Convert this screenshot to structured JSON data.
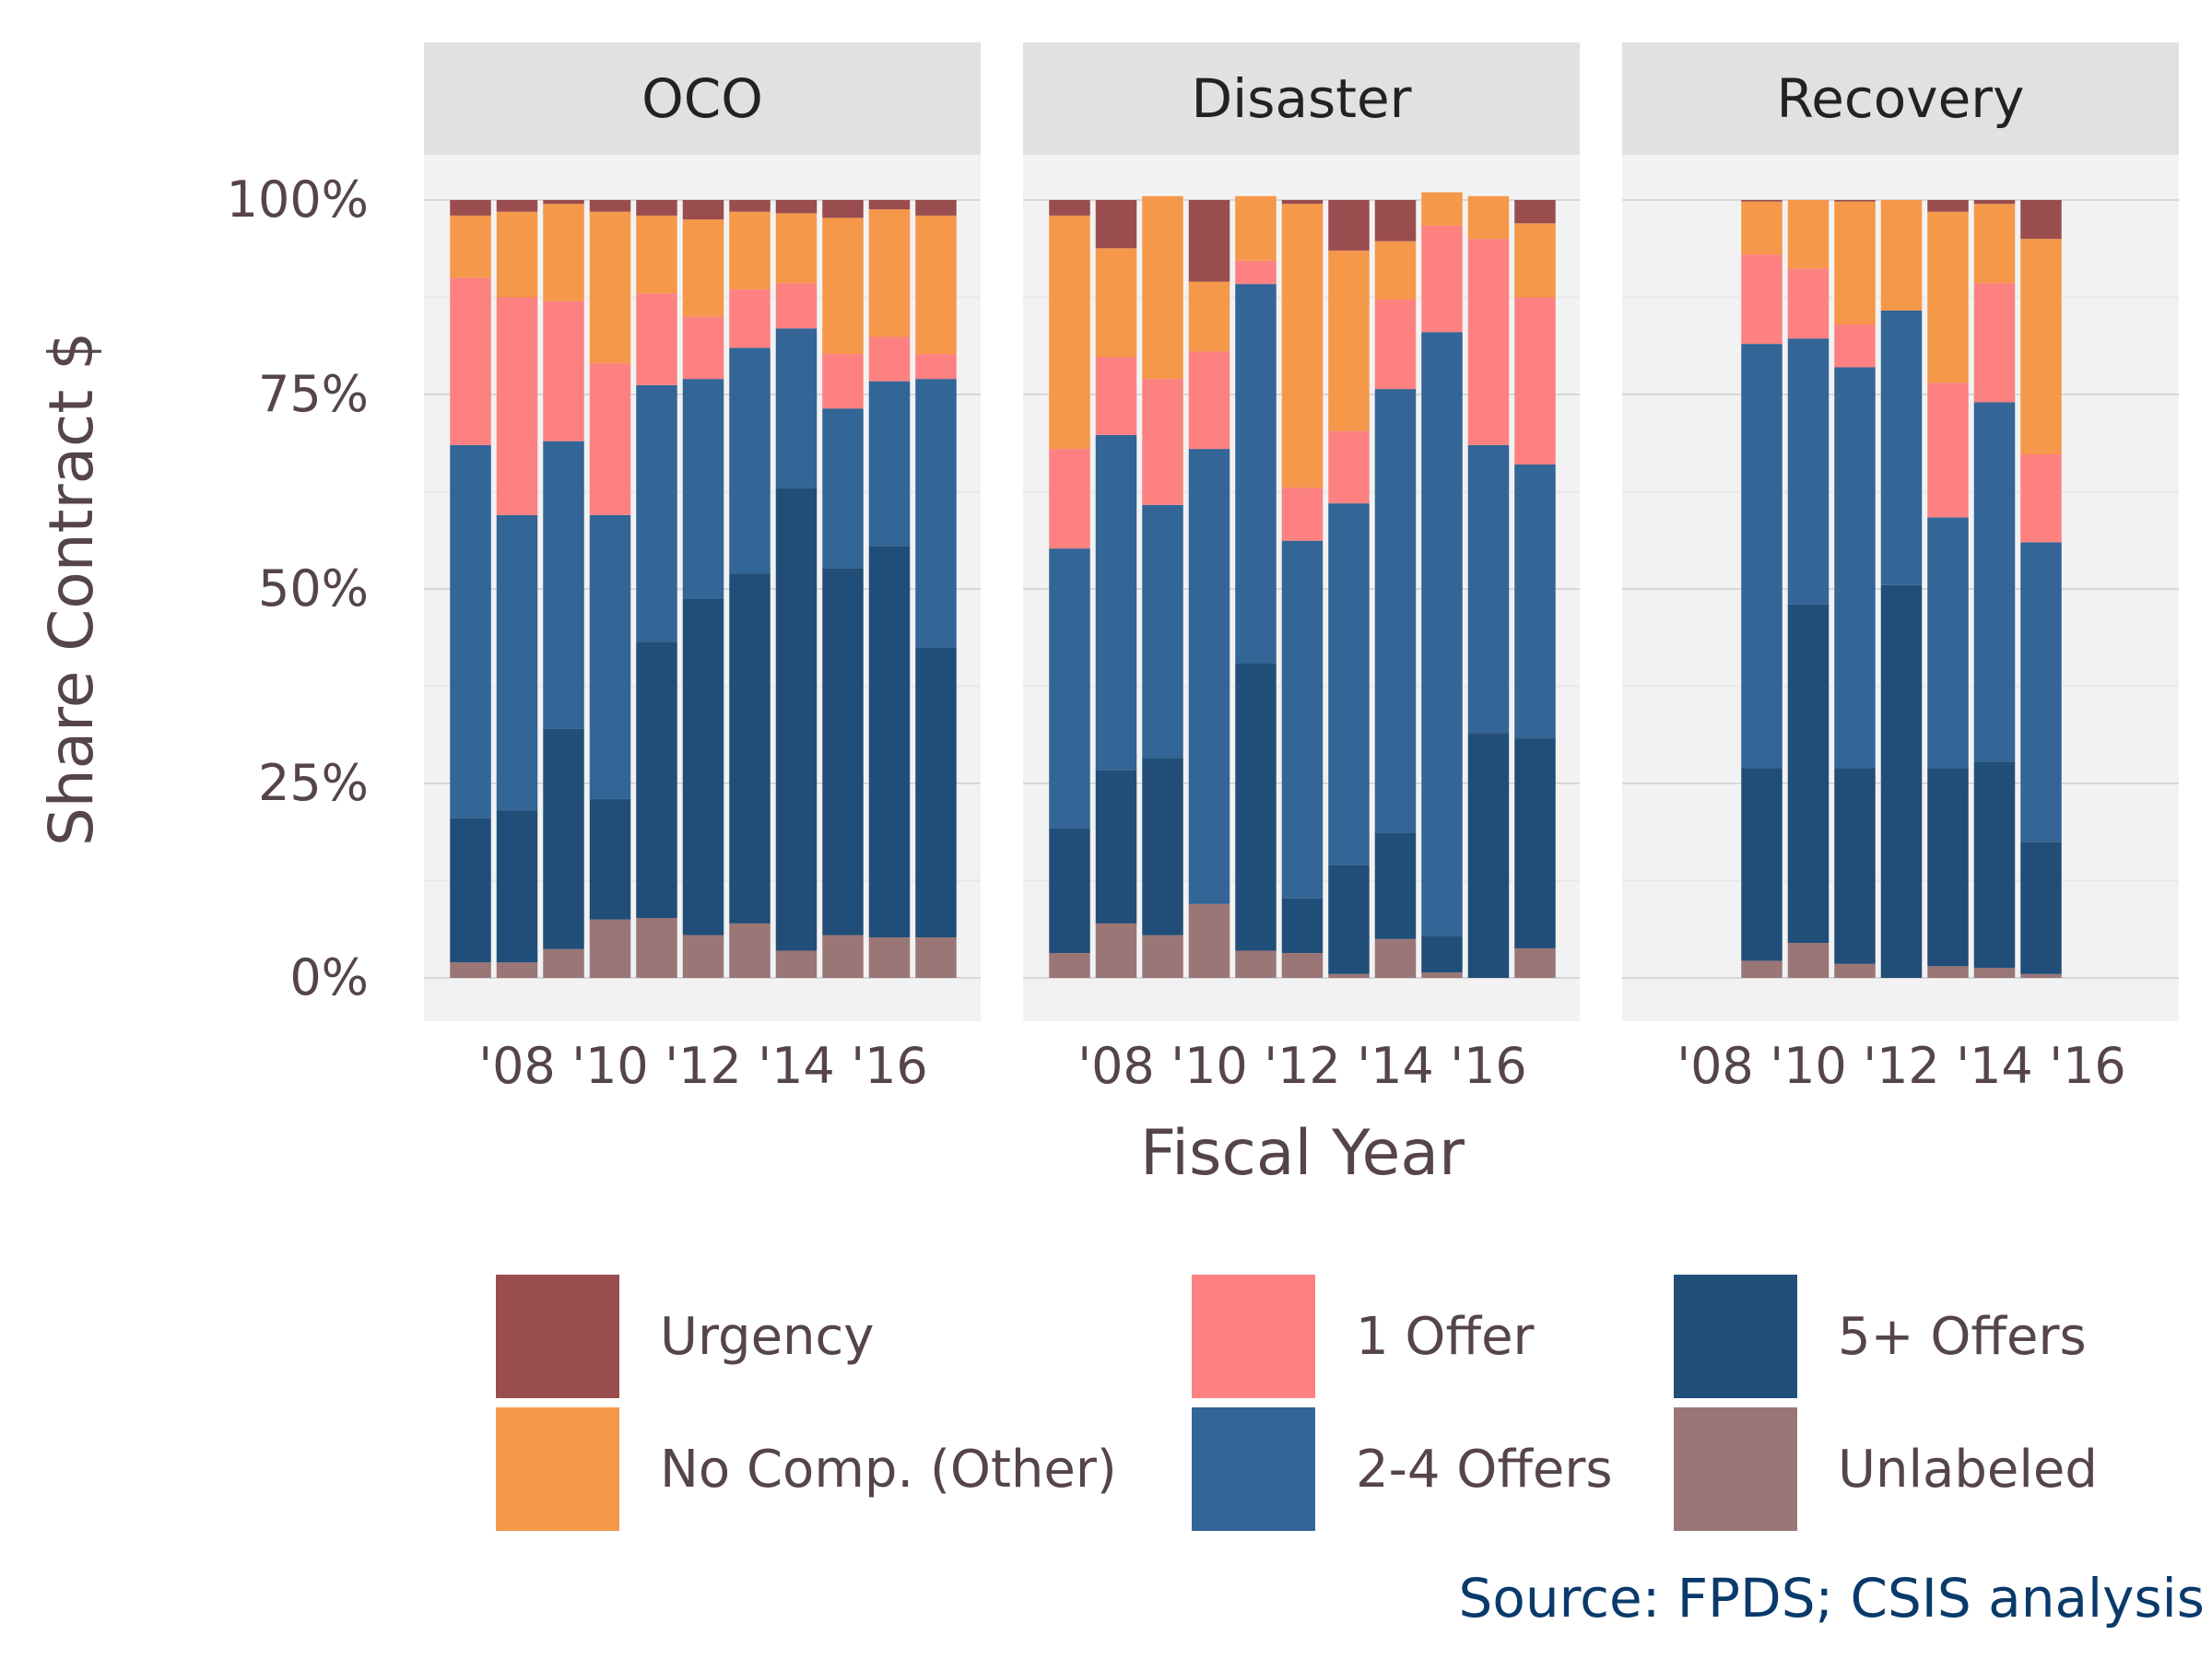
{
  "chart_data": {
    "type": "bar",
    "stacked": true,
    "ylabel": "Share Contract $",
    "xlabel": "Fiscal Year",
    "ylim": [
      0,
      1
    ],
    "y_ticks": [
      "0%",
      "25%",
      "50%",
      "75%",
      "100%"
    ],
    "x_ticks": [
      "'08",
      "'10",
      "'12",
      "'14",
      "'16"
    ],
    "categories": [
      2007,
      2008,
      2009,
      2010,
      2011,
      2012,
      2013,
      2014,
      2015,
      2016,
      2017
    ],
    "stack_order": [
      "Unlabeled",
      "5+ Offers",
      "2-4 Offers",
      "1 Offer",
      "No Comp. (Other)",
      "Urgency"
    ],
    "series_colors": {
      "Urgency": "#9a4d4e",
      "No Comp. (Other)": "#f5984a",
      "1 Offer": "#fd8180",
      "2-4 Offers": "#336596",
      "5+ Offers": "#214e78",
      "Unlabeled": "#9a7677"
    },
    "panels": [
      {
        "title": "OCO",
        "bars": [
          {
            "year": 2007,
            "Unlabeled": 0.02,
            "5+ Offers": 0.185,
            "2-4 Offers": 0.48,
            "1 Offer": 0.215,
            "No Comp. (Other)": 0.08,
            "Urgency": 0.02
          },
          {
            "year": 2008,
            "Unlabeled": 0.02,
            "5+ Offers": 0.195,
            "2-4 Offers": 0.38,
            "1 Offer": 0.28,
            "No Comp. (Other)": 0.11,
            "Urgency": 0.015
          },
          {
            "year": 2009,
            "Unlabeled": 0.037,
            "5+ Offers": 0.283,
            "2-4 Offers": 0.37,
            "1 Offer": 0.18,
            "No Comp. (Other)": 0.125,
            "Urgency": 0.005
          },
          {
            "year": 2010,
            "Unlabeled": 0.075,
            "5+ Offers": 0.155,
            "2-4 Offers": 0.365,
            "1 Offer": 0.195,
            "No Comp. (Other)": 0.195,
            "Urgency": 0.015
          },
          {
            "year": 2011,
            "Unlabeled": 0.077,
            "5+ Offers": 0.355,
            "2-4 Offers": 0.33,
            "1 Offer": 0.118,
            "No Comp. (Other)": 0.1,
            "Urgency": 0.02
          },
          {
            "year": 2012,
            "Unlabeled": 0.055,
            "5+ Offers": 0.432,
            "2-4 Offers": 0.283,
            "1 Offer": 0.08,
            "No Comp. (Other)": 0.125,
            "Urgency": 0.025
          },
          {
            "year": 2013,
            "Unlabeled": 0.07,
            "5+ Offers": 0.45,
            "2-4 Offers": 0.29,
            "1 Offer": 0.075,
            "No Comp. (Other)": 0.1,
            "Urgency": 0.015
          },
          {
            "year": 2014,
            "Unlabeled": 0.035,
            "5+ Offers": 0.595,
            "2-4 Offers": 0.205,
            "1 Offer": 0.058,
            "No Comp. (Other)": 0.09,
            "Urgency": 0.017
          },
          {
            "year": 2015,
            "Unlabeled": 0.055,
            "5+ Offers": 0.472,
            "2-4 Offers": 0.205,
            "1 Offer": 0.07,
            "No Comp. (Other)": 0.175,
            "Urgency": 0.023
          },
          {
            "year": 2016,
            "Unlabeled": 0.052,
            "5+ Offers": 0.503,
            "2-4 Offers": 0.212,
            "1 Offer": 0.057,
            "No Comp. (Other)": 0.164,
            "Urgency": 0.012
          },
          {
            "year": 2017,
            "Unlabeled": 0.052,
            "5+ Offers": 0.373,
            "2-4 Offers": 0.345,
            "1 Offer": 0.032,
            "No Comp. (Other)": 0.178,
            "Urgency": 0.02
          }
        ]
      },
      {
        "title": "Disaster",
        "bars": [
          {
            "year": 2007,
            "Unlabeled": 0.032,
            "5+ Offers": 0.16,
            "2-4 Offers": 0.36,
            "1 Offer": 0.128,
            "No Comp. (Other)": 0.3,
            "Urgency": 0.02
          },
          {
            "year": 2008,
            "Unlabeled": 0.07,
            "5+ Offers": 0.197,
            "2-4 Offers": 0.431,
            "1 Offer": 0.1,
            "No Comp. (Other)": 0.14,
            "Urgency": 0.062
          },
          {
            "year": 2009,
            "Unlabeled": 0.055,
            "5+ Offers": 0.228,
            "2-4 Offers": 0.325,
            "1 Offer": 0.162,
            "No Comp. (Other)": 0.235,
            "Urgency": 0.0
          },
          {
            "year": 2010,
            "Unlabeled": 0.095,
            "5+ Offers": 0.0,
            "2-4 Offers": 0.585,
            "1 Offer": 0.125,
            "No Comp. (Other)": 0.09,
            "Urgency": 0.105
          },
          {
            "year": 2011,
            "Unlabeled": 0.035,
            "5+ Offers": 0.37,
            "2-4 Offers": 0.487,
            "1 Offer": 0.03,
            "No Comp. (Other)": 0.083,
            "Urgency": 0.0
          },
          {
            "year": 2012,
            "Unlabeled": 0.032,
            "5+ Offers": 0.07,
            "2-4 Offers": 0.46,
            "1 Offer": 0.068,
            "No Comp. (Other)": 0.365,
            "Urgency": 0.005
          },
          {
            "year": 2013,
            "Unlabeled": 0.005,
            "5+ Offers": 0.14,
            "2-4 Offers": 0.465,
            "1 Offer": 0.093,
            "No Comp. (Other)": 0.232,
            "Urgency": 0.065
          },
          {
            "year": 2014,
            "Unlabeled": 0.05,
            "5+ Offers": 0.137,
            "2-4 Offers": 0.57,
            "1 Offer": 0.115,
            "No Comp. (Other)": 0.075,
            "Urgency": 0.053
          },
          {
            "year": 2015,
            "Unlabeled": 0.007,
            "5+ Offers": 0.047,
            "2-4 Offers": 0.776,
            "1 Offer": 0.137,
            "No Comp. (Other)": 0.043,
            "Urgency": 0.0
          },
          {
            "year": 2016,
            "Unlabeled": 0.0,
            "5+ Offers": 0.315,
            "2-4 Offers": 0.37,
            "1 Offer": 0.265,
            "No Comp. (Other)": 0.055,
            "Urgency": 0.0
          },
          {
            "year": 2017,
            "Unlabeled": 0.038,
            "5+ Offers": 0.27,
            "2-4 Offers": 0.352,
            "1 Offer": 0.215,
            "No Comp. (Other)": 0.095,
            "Urgency": 0.03
          }
        ]
      },
      {
        "title": "Recovery",
        "bars": [
          {
            "year": 2009,
            "Unlabeled": 0.022,
            "5+ Offers": 0.248,
            "2-4 Offers": 0.545,
            "1 Offer": 0.115,
            "No Comp. (Other)": 0.068,
            "Urgency": 0.002
          },
          {
            "year": 2010,
            "Unlabeled": 0.045,
            "5+ Offers": 0.435,
            "2-4 Offers": 0.342,
            "1 Offer": 0.09,
            "No Comp. (Other)": 0.088,
            "Urgency": 0.0
          },
          {
            "year": 2011,
            "Unlabeled": 0.018,
            "5+ Offers": 0.252,
            "2-4 Offers": 0.515,
            "1 Offer": 0.055,
            "No Comp. (Other)": 0.158,
            "Urgency": 0.002
          },
          {
            "year": 2012,
            "Unlabeled": 0.0,
            "5+ Offers": 0.505,
            "2-4 Offers": 0.353,
            "1 Offer": 0.0,
            "No Comp. (Other)": 0.142,
            "Urgency": 0.0
          },
          {
            "year": 2013,
            "Unlabeled": 0.015,
            "5+ Offers": 0.255,
            "2-4 Offers": 0.322,
            "1 Offer": 0.173,
            "No Comp. (Other)": 0.22,
            "Urgency": 0.015
          },
          {
            "year": 2014,
            "Unlabeled": 0.013,
            "5+ Offers": 0.265,
            "2-4 Offers": 0.462,
            "1 Offer": 0.153,
            "No Comp. (Other)": 0.102,
            "Urgency": 0.005
          },
          {
            "year": 2015,
            "Unlabeled": 0.005,
            "5+ Offers": 0.17,
            "2-4 Offers": 0.385,
            "1 Offer": 0.113,
            "No Comp. (Other)": 0.277,
            "Urgency": 0.05
          }
        ]
      }
    ],
    "legend": {
      "placement": "bottom",
      "items": [
        {
          "label": "Urgency",
          "color": "#9a4d4e"
        },
        {
          "label": "1 Offer",
          "color": "#fd8180"
        },
        {
          "label": "5+ Offers",
          "color": "#214e78"
        },
        {
          "label": "No Comp. (Other)",
          "color": "#f5984a"
        },
        {
          "label": "2-4 Offers",
          "color": "#336596"
        },
        {
          "label": "Unlabeled",
          "color": "#9a7677"
        }
      ]
    },
    "source": "Source: FPDS; CSIS analysis"
  }
}
